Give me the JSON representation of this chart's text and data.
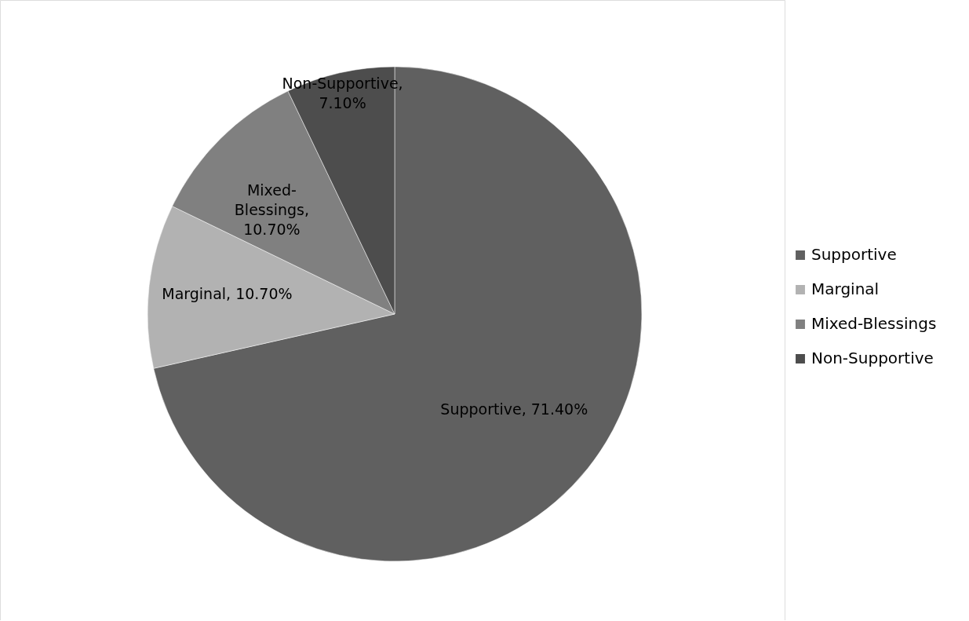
{
  "chart_data": {
    "type": "pie",
    "categories": [
      "Supportive",
      "Marginal",
      "Mixed-Blessings",
      "Non-Supportive"
    ],
    "values": [
      71.4,
      10.7,
      10.7,
      7.1
    ],
    "value_labels": [
      "Supportive, 71.40%",
      "Marginal, 10.70%",
      "Mixed-Blessings, 10.70%",
      "Non-Supportive, 7.10%"
    ],
    "colors": [
      "#606060",
      "#b2b2b2",
      "#808080",
      "#4d4d4d"
    ],
    "legend": "right"
  }
}
